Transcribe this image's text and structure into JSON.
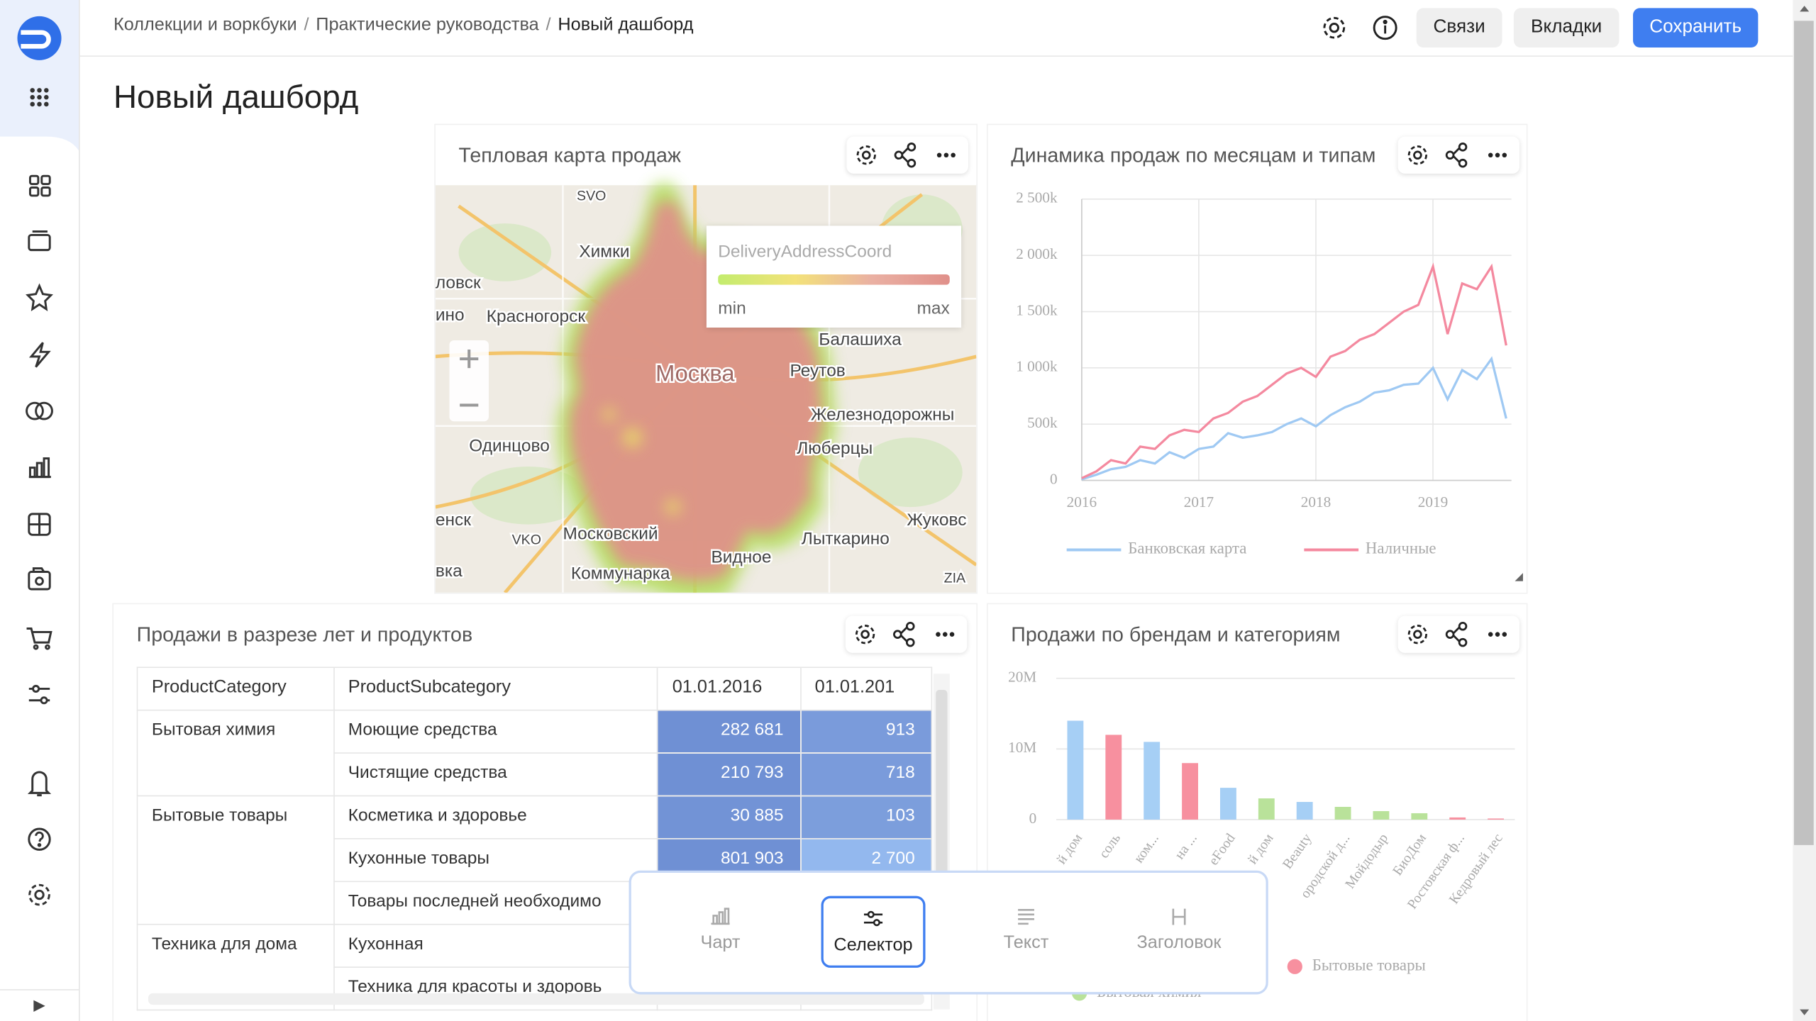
{
  "header": {
    "breadcrumbs": [
      "Коллекции и воркбуки",
      "Практические руководства",
      "Новый дашборд"
    ],
    "buttons": [
      "Связи",
      "Вкладки",
      "Сохранить"
    ]
  },
  "title": "Новый дашборд",
  "map_widget": {
    "title": "Тепловая карта продаж",
    "legend": {
      "title": "DeliveryAddressCoord",
      "min": "min",
      "max": "max"
    },
    "places": [
      "SVO",
      "Химки",
      "ловск",
      "ино",
      "Красногорск",
      "Москва",
      "Реутов",
      "Балашиха",
      "Железнодорожны",
      "Одинцово",
      "Люберцы",
      "енск",
      "VKO",
      "Московский",
      "Лыткарино",
      "Жуковс",
      "Видное",
      "вка",
      "Коммунарка",
      "ZIA"
    ]
  },
  "chart_data": [
    {
      "type": "line",
      "title": "Динамика продаж по месяцам и типам",
      "x": [
        2016,
        2016.125,
        2016.25,
        2016.375,
        2016.5,
        2016.625,
        2016.75,
        2016.875,
        2017,
        2017.125,
        2017.25,
        2017.375,
        2017.5,
        2017.625,
        2017.75,
        2017.875,
        2018,
        2018.125,
        2018.25,
        2018.375,
        2018.5,
        2018.625,
        2018.75,
        2018.875,
        2019,
        2019.125,
        2019.25,
        2019.375,
        2019.5,
        2019.625
      ],
      "xlim": [
        2016,
        2019.67
      ],
      "xticks": [
        2016,
        2017,
        2018,
        2019
      ],
      "ylim": [
        0,
        2500000
      ],
      "yticks": [
        0,
        {
          "value": 500000,
          "label": "500k"
        },
        {
          "value": 1000000,
          "label": "1 000k"
        },
        {
          "value": 1500000,
          "label": "1 500k"
        },
        {
          "value": 2000000,
          "label": "2 000k"
        },
        {
          "value": 2500000,
          "label": "2 500k"
        }
      ],
      "grid": true,
      "series": [
        {
          "name": "Банковская карта",
          "color": "#9fc9f3",
          "values": [
            10000,
            50000,
            100000,
            120000,
            180000,
            150000,
            250000,
            200000,
            280000,
            300000,
            420000,
            380000,
            400000,
            430000,
            500000,
            550000,
            480000,
            580000,
            650000,
            700000,
            780000,
            800000,
            850000,
            860000,
            1000000,
            720000,
            980000,
            900000,
            1080000,
            550000
          ]
        },
        {
          "name": "Наличные",
          "color": "#f4899f",
          "values": [
            20000,
            80000,
            180000,
            150000,
            300000,
            280000,
            400000,
            450000,
            430000,
            550000,
            600000,
            700000,
            750000,
            850000,
            950000,
            1000000,
            920000,
            1100000,
            1150000,
            1250000,
            1300000,
            1400000,
            1500000,
            1560000,
            1900000,
            1300000,
            1750000,
            1700000,
            1900000,
            1200000
          ]
        }
      ]
    },
    {
      "type": "bar",
      "title": "Продажи по брендам и категориям",
      "categories": [
        "й дом",
        "соль",
        "ком...",
        "на ...",
        "eFood",
        "й дом",
        "Beauty",
        "ородской д...",
        "Мойдодыр",
        "БиоДом",
        "Ростовская ф...",
        "Кедровый лес"
      ],
      "values": [
        14000000,
        12000000,
        11000000,
        8000000,
        4500000,
        3000000,
        2500000,
        1800000,
        1200000,
        900000,
        300000,
        150000
      ],
      "colors": [
        "#a6cff5",
        "#f7909f",
        "#a6cff5",
        "#f7909f",
        "#a6cff5",
        "#b9e29a",
        "#a6cff5",
        "#b9e29a",
        "#b9e29a",
        "#b9e29a",
        "#f7909f",
        "#f7909f"
      ],
      "ylim": [
        0,
        20000000
      ],
      "yticks": [
        0,
        {
          "value": 10000000,
          "label": "10M"
        },
        {
          "value": 20000000,
          "label": "20M"
        }
      ],
      "grid": true,
      "legend": [
        {
          "name": "Бытовые товары",
          "color": "#f7909f"
        },
        {
          "name": "Бытовая химия",
          "color": "#b9e29a"
        }
      ]
    }
  ],
  "table_widget": {
    "title": "Продажи в разрезе лет и продуктов",
    "columns": [
      "ProductCategory",
      "ProductSubcategory",
      "01.01.2016",
      "01.01.201"
    ],
    "groups": [
      {
        "category": "Бытовая химия",
        "rows": [
          [
            "Моющие средства",
            "282 681",
            "913"
          ],
          [
            "Чистящие средства",
            "210 793",
            "718"
          ]
        ]
      },
      {
        "category": "Бытовые товары",
        "rows": [
          [
            "Косметика и здоровье",
            "30 885",
            "103"
          ],
          [
            "Кухонные товары",
            "801 903",
            "2 700"
          ],
          [
            "Товары последней необходимо"
          ]
        ]
      },
      {
        "category": "Техника для дома",
        "rows": [
          [
            "Кухонная"
          ],
          [
            "Техника для красоты и здоровь"
          ]
        ]
      }
    ]
  },
  "add_menu": {
    "items": [
      "Чарт",
      "Селектор",
      "Текст",
      "Заголовок"
    ],
    "selected": 1
  }
}
